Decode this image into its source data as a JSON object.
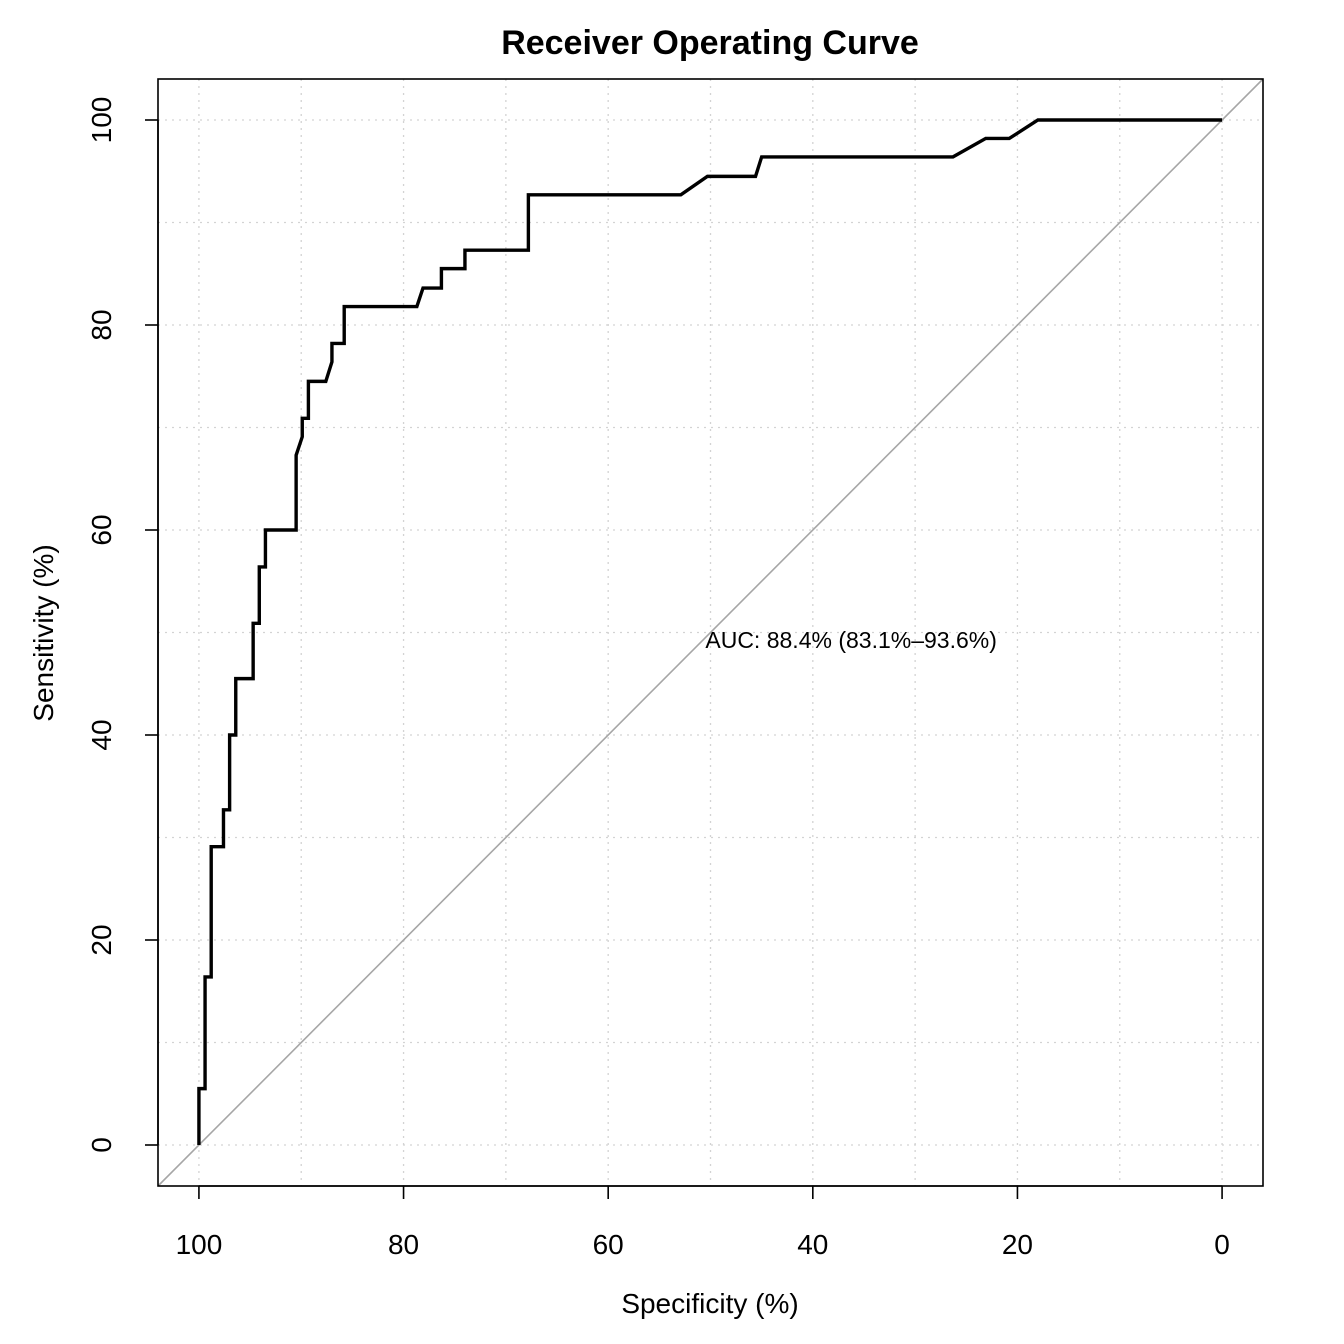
{
  "chart_data": {
    "type": "line",
    "title": "Receiver Operating Curve",
    "xlabel": "Specificity (%)",
    "ylabel": "Sensitivity (%)",
    "x_reversed": true,
    "xlim": [
      104,
      -4
    ],
    "ylim": [
      -4,
      104
    ],
    "xticks": [
      100,
      80,
      60,
      40,
      20,
      0
    ],
    "yticks": [
      0,
      20,
      40,
      60,
      80,
      100
    ],
    "grid": true,
    "annotation": {
      "text": "AUC: 88.4% (83.1%–93.6%)",
      "x": 50.5,
      "y": 48.5
    },
    "reference_line": {
      "from": [
        100,
        0
      ],
      "to": [
        0,
        100
      ],
      "color": "#a6a6a6"
    },
    "series": [
      {
        "color": "#000000",
        "points": [
          [
            100,
            0
          ],
          [
            100,
            5.5
          ],
          [
            99.4,
            5.5
          ],
          [
            99.4,
            16.4
          ],
          [
            98.8,
            16.4
          ],
          [
            98.8,
            29.1
          ],
          [
            97.6,
            29.1
          ],
          [
            97.6,
            32.7
          ],
          [
            97,
            32.7
          ],
          [
            97,
            40
          ],
          [
            96.4,
            40
          ],
          [
            96.4,
            45.5
          ],
          [
            94.7,
            45.5
          ],
          [
            94.7,
            50.9
          ],
          [
            94.1,
            50.9
          ],
          [
            94.1,
            56.4
          ],
          [
            93.5,
            56.4
          ],
          [
            93.5,
            60
          ],
          [
            90.5,
            60
          ],
          [
            90.5,
            67.3
          ],
          [
            89.9,
            69.1
          ],
          [
            89.9,
            70.9
          ],
          [
            89.3,
            70.9
          ],
          [
            89.3,
            74.5
          ],
          [
            87.6,
            74.5
          ],
          [
            87,
            76.4
          ],
          [
            87,
            78.2
          ],
          [
            85.8,
            78.2
          ],
          [
            85.8,
            81.8
          ],
          [
            78.7,
            81.8
          ],
          [
            78.1,
            83.6
          ],
          [
            76.3,
            83.6
          ],
          [
            76.3,
            85.5
          ],
          [
            74,
            85.5
          ],
          [
            74,
            87.3
          ],
          [
            67.8,
            87.3
          ],
          [
            67.8,
            92.7
          ],
          [
            52.9,
            92.7
          ],
          [
            50.3,
            94.5
          ],
          [
            45.6,
            94.5
          ],
          [
            45,
            96.4
          ],
          [
            26.3,
            96.4
          ],
          [
            23.1,
            98.2
          ],
          [
            20.8,
            98.2
          ],
          [
            18,
            100
          ],
          [
            0,
            100
          ]
        ]
      }
    ]
  }
}
